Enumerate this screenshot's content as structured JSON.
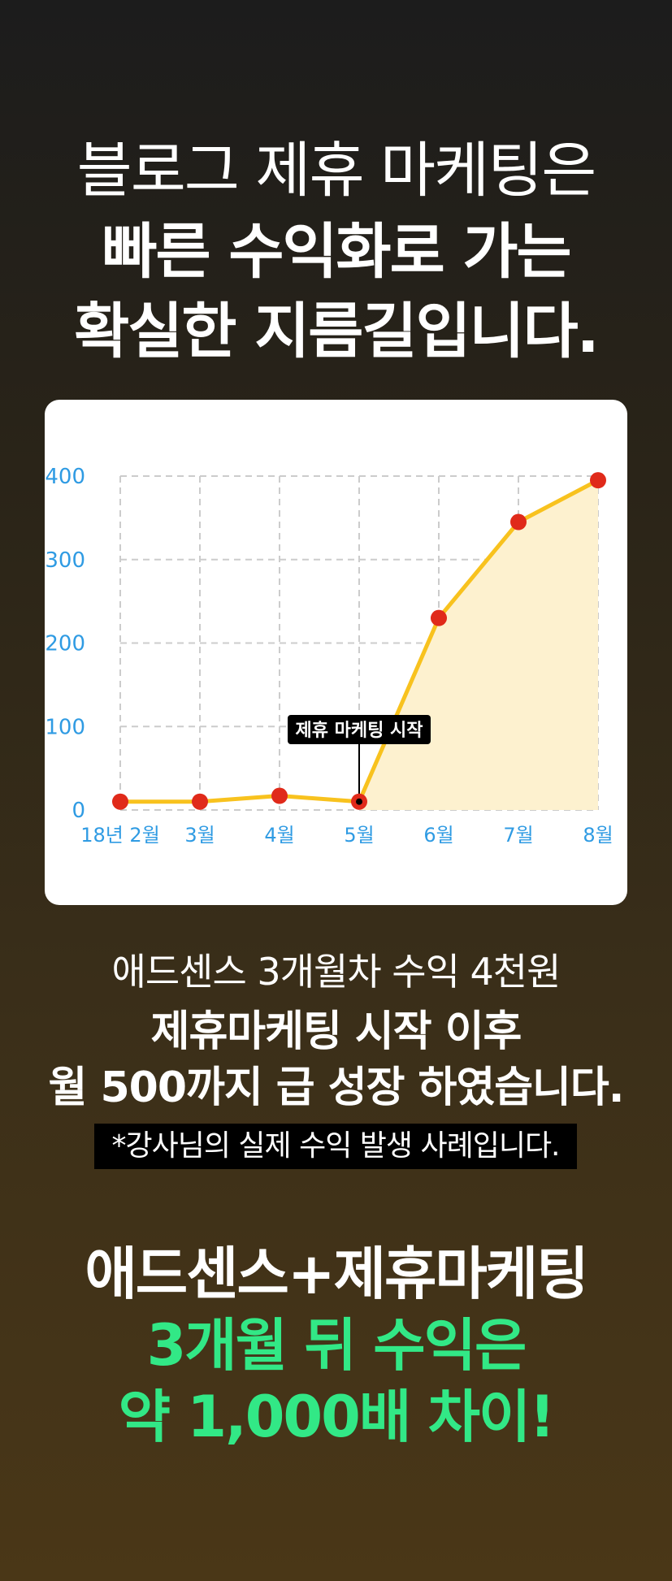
{
  "headline": {
    "line1": "블로그 제휴 마케팅은",
    "line2": "빠른 수익화로 가는",
    "line3": "확실한 지름길입니다."
  },
  "chart_data": {
    "type": "line",
    "categories": [
      "18년 2월",
      "3월",
      "4월",
      "5월",
      "6월",
      "7월",
      "8월"
    ],
    "values": [
      10,
      10,
      17,
      10,
      230,
      345,
      395
    ],
    "yticks": [
      "0",
      "100",
      "200",
      "300",
      "400"
    ],
    "ylim": [
      0,
      400
    ],
    "grid": true,
    "annotation": {
      "text": "제휴 마케팅 시작",
      "category_index": 3
    },
    "colors": {
      "line": "#f8c21e",
      "fill": "#fdf1cf",
      "point": "#e02a1a",
      "axis_text": "#2f9be3",
      "grid": "#cccccc"
    }
  },
  "summary": {
    "line1": "애드센스 3개월차 수익 4천원",
    "line2": "제휴마케팅 시작 이후",
    "line3": "월 500까지 급 성장 하였습니다.",
    "note": "*강사님의 실제 수익 발생 사례입니다."
  },
  "bottom": {
    "line1": "애드센스+제휴마케팅",
    "line2": "3개월 뒤 수익은",
    "line3": "약 1,000배 차이!",
    "accent": "#32e886"
  }
}
